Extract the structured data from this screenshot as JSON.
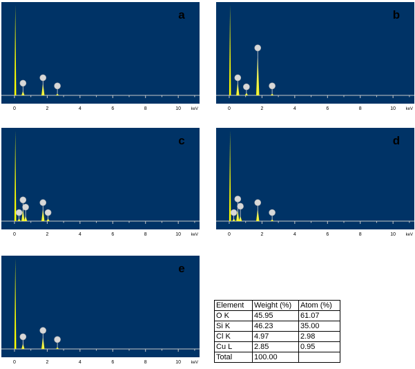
{
  "colors": {
    "plot_bg": "#003366",
    "spectrum": "#ffff00",
    "axis": "#c8c8c8",
    "marker": "#d8d8d8"
  },
  "chart_data": [
    {
      "type": "line",
      "title": "a",
      "xlabel": "keV",
      "xlim": [
        -0.8,
        11.3
      ],
      "ylim": [
        0,
        100
      ],
      "x_ticks": [
        "0",
        "2",
        "4",
        "6",
        "8",
        "10"
      ],
      "peaks": [
        {
          "x": 0.05,
          "y": 100
        },
        {
          "x": 0.52,
          "y": 5
        },
        {
          "x": 1.74,
          "y": 14
        },
        {
          "x": 2.62,
          "y": 2
        }
      ],
      "markers": [
        {
          "x": 0.52,
          "y": 10
        },
        {
          "x": 1.74,
          "y": 16
        },
        {
          "x": 2.62,
          "y": 7
        }
      ]
    },
    {
      "type": "line",
      "title": "b",
      "xlabel": "keV",
      "xlim": [
        -0.8,
        11.3
      ],
      "ylim": [
        0,
        100
      ],
      "x_ticks": [
        "0",
        "2",
        "4",
        "6",
        "8",
        "10"
      ],
      "peaks": [
        {
          "x": 0.05,
          "y": 100
        },
        {
          "x": 0.52,
          "y": 15
        },
        {
          "x": 1.05,
          "y": 3
        },
        {
          "x": 1.74,
          "y": 47
        },
        {
          "x": 2.62,
          "y": 2
        }
      ],
      "markers": [
        {
          "x": 0.52,
          "y": 16
        },
        {
          "x": 1.05,
          "y": 6
        },
        {
          "x": 1.74,
          "y": 49
        },
        {
          "x": 2.62,
          "y": 7
        }
      ]
    },
    {
      "type": "line",
      "title": "c",
      "xlabel": "keV",
      "xlim": [
        -0.8,
        11.3
      ],
      "ylim": [
        0,
        100
      ],
      "x_ticks": [
        "0",
        "2",
        "4",
        "6",
        "8",
        "10"
      ],
      "peaks": [
        {
          "x": 0.05,
          "y": 100
        },
        {
          "x": 0.28,
          "y": 3
        },
        {
          "x": 0.52,
          "y": 14
        },
        {
          "x": 0.68,
          "y": 6
        },
        {
          "x": 1.74,
          "y": 14
        },
        {
          "x": 2.05,
          "y": 3
        }
      ],
      "markers": [
        {
          "x": 0.28,
          "y": 6
        },
        {
          "x": 0.52,
          "y": 20
        },
        {
          "x": 0.68,
          "y": 12
        },
        {
          "x": 1.74,
          "y": 17
        },
        {
          "x": 2.05,
          "y": 6
        }
      ]
    },
    {
      "type": "line",
      "title": "d",
      "xlabel": "keV",
      "xlim": [
        -0.8,
        11.3
      ],
      "ylim": [
        0,
        100
      ],
      "x_ticks": [
        "0",
        "2",
        "4",
        "6",
        "8",
        "10"
      ],
      "peaks": [
        {
          "x": 0.05,
          "y": 100
        },
        {
          "x": 0.28,
          "y": 3
        },
        {
          "x": 0.52,
          "y": 13
        },
        {
          "x": 0.68,
          "y": 6
        },
        {
          "x": 1.74,
          "y": 14
        },
        {
          "x": 2.62,
          "y": 2
        }
      ],
      "markers": [
        {
          "x": 0.28,
          "y": 6
        },
        {
          "x": 0.52,
          "y": 21
        },
        {
          "x": 0.68,
          "y": 13
        },
        {
          "x": 1.74,
          "y": 17
        },
        {
          "x": 2.62,
          "y": 6
        }
      ]
    },
    {
      "type": "line",
      "title": "e",
      "xlabel": "keV",
      "xlim": [
        -0.8,
        11.3
      ],
      "ylim": [
        0,
        100
      ],
      "x_ticks": [
        "0",
        "2",
        "4",
        "6",
        "8",
        "10"
      ],
      "peaks": [
        {
          "x": 0.05,
          "y": 100
        },
        {
          "x": 0.52,
          "y": 6
        },
        {
          "x": 1.74,
          "y": 14
        },
        {
          "x": 2.62,
          "y": 2
        }
      ],
      "markers": [
        {
          "x": 0.52,
          "y": 10
        },
        {
          "x": 1.74,
          "y": 17
        },
        {
          "x": 2.62,
          "y": 7
        }
      ]
    }
  ],
  "table": {
    "headers": [
      "Element",
      "Weight (%)",
      "Atom (%)"
    ],
    "rows": [
      [
        "O K",
        "45.95",
        "61.07"
      ],
      [
        "Si K",
        "46.23",
        "35.00"
      ],
      [
        "Cl K",
        "4.97",
        "2.98"
      ],
      [
        "Cu L",
        "2.85",
        "0.95"
      ],
      [
        "Total",
        "100.00",
        ""
      ]
    ]
  }
}
